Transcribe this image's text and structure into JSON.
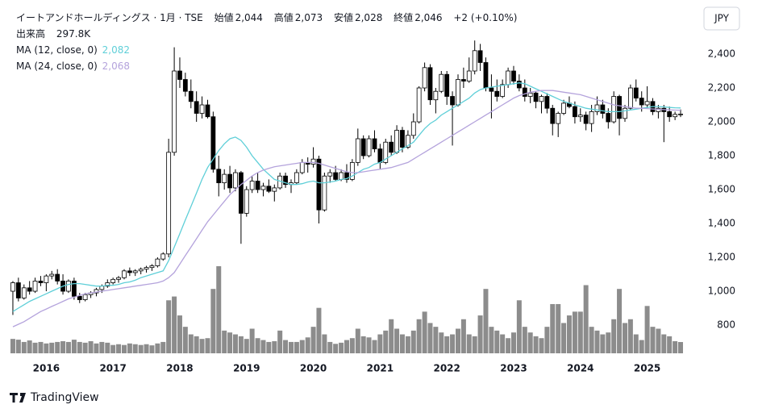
{
  "header": {
    "symbol": "イートアンドホールディングス · 1月 · TSE",
    "open_label": "始値",
    "open": "2,044",
    "high_label": "高値",
    "high": "2,073",
    "low_label": "安値",
    "low": "2,028",
    "close_label": "終値",
    "close": "2,046",
    "change": "+2 (+0.10%)",
    "volume_label": "出来高",
    "volume": "297.8K"
  },
  "chart_data": {
    "type": "candlestick",
    "currency": "JPY",
    "up_color": "#ffffff",
    "down_color": "#000000",
    "volume_color": "#8c8c8c",
    "x": [
      2015.5,
      2015.583,
      2015.667,
      2015.75,
      2015.833,
      2015.917,
      2016,
      2016.083,
      2016.167,
      2016.25,
      2016.333,
      2016.417,
      2016.5,
      2016.583,
      2016.667,
      2016.75,
      2016.833,
      2016.917,
      2017,
      2017.083,
      2017.167,
      2017.25,
      2017.333,
      2017.417,
      2017.5,
      2017.583,
      2017.667,
      2017.75,
      2017.833,
      2017.917,
      2018,
      2018.083,
      2018.167,
      2018.25,
      2018.333,
      2018.417,
      2018.5,
      2018.583,
      2018.667,
      2018.75,
      2018.833,
      2018.917,
      2019,
      2019.083,
      2019.167,
      2019.25,
      2019.333,
      2019.417,
      2019.5,
      2019.583,
      2019.667,
      2019.75,
      2019.833,
      2019.917,
      2020,
      2020.083,
      2020.167,
      2020.25,
      2020.333,
      2020.417,
      2020.5,
      2020.583,
      2020.667,
      2020.75,
      2020.833,
      2020.917,
      2021,
      2021.083,
      2021.167,
      2021.25,
      2021.333,
      2021.417,
      2021.5,
      2021.583,
      2021.667,
      2021.75,
      2021.833,
      2021.917,
      2022,
      2022.083,
      2022.167,
      2022.25,
      2022.333,
      2022.417,
      2022.5,
      2022.583,
      2022.667,
      2022.75,
      2022.833,
      2022.917,
      2023,
      2023.083,
      2023.167,
      2023.25,
      2023.333,
      2023.417,
      2023.5,
      2023.583,
      2023.667,
      2023.75,
      2023.833,
      2023.917,
      2024,
      2024.083,
      2024.167,
      2024.25,
      2024.333,
      2024.417,
      2024.5,
      2024.583,
      2024.667,
      2024.75,
      2024.833,
      2024.917,
      2025,
      2025.083,
      2025.167,
      2025.25,
      2025.333,
      2025.417,
      2025.5
    ],
    "open": [
      1000,
      1050,
      960,
      1020,
      1000,
      1060,
      1050,
      1090,
      1100,
      1060,
      1000,
      1060,
      970,
      950,
      980,
      990,
      1010,
      1030,
      1050,
      1070,
      1080,
      1120,
      1110,
      1120,
      1130,
      1140,
      1150,
      1190,
      1220,
      1820,
      2300,
      2250,
      2180,
      2120,
      2050,
      2100,
      2030,
      1720,
      1640,
      1690,
      1610,
      1700,
      1460,
      1600,
      1650,
      1600,
      1620,
      1590,
      1610,
      1680,
      1630,
      1640,
      1700,
      1760,
      1750,
      1780,
      1480,
      1680,
      1700,
      1660,
      1700,
      1660,
      1760,
      1900,
      1800,
      1900,
      1840,
      1760,
      1880,
      1820,
      1950,
      1850,
      1920,
      2000,
      2200,
      2320,
      2130,
      2180,
      2280,
      2150,
      2100,
      2250,
      2240,
      2300,
      2420,
      2350,
      2200,
      2180,
      2150,
      2220,
      2300,
      2240,
      2200,
      2150,
      2170,
      2120,
      2150,
      2080,
      1990,
      2050,
      2110,
      2090,
      2030,
      2040,
      1990,
      2060,
      2100,
      2050,
      2000,
      2150,
      2020,
      2080,
      2200,
      2140,
      2100,
      2120,
      2060,
      2080,
      2060,
      2030,
      2044
    ],
    "high": [
      1060,
      1080,
      1040,
      1060,
      1080,
      1090,
      1100,
      1120,
      1130,
      1100,
      1070,
      1080,
      990,
      990,
      1000,
      1020,
      1040,
      1070,
      1080,
      1090,
      1130,
      1140,
      1130,
      1140,
      1150,
      1160,
      1200,
      1230,
      1900,
      2440,
      2380,
      2290,
      2250,
      2180,
      2150,
      2130,
      2060,
      1800,
      1720,
      1740,
      1720,
      1710,
      1620,
      1680,
      1700,
      1640,
      1660,
      1630,
      1700,
      1700,
      1660,
      1720,
      1780,
      1790,
      1850,
      1800,
      1700,
      1720,
      1740,
      1720,
      1750,
      1780,
      1960,
      1920,
      1920,
      1950,
      1870,
      1900,
      1920,
      1980,
      1970,
      1950,
      2050,
      2210,
      2350,
      2340,
      2200,
      2300,
      2300,
      2180,
      2280,
      2320,
      2380,
      2480,
      2460,
      2380,
      2280,
      2250,
      2250,
      2320,
      2330,
      2280,
      2250,
      2200,
      2180,
      2160,
      2170,
      2100,
      2060,
      2130,
      2150,
      2120,
      2080,
      2060,
      2100,
      2150,
      2130,
      2080,
      2180,
      2160,
      2100,
      2220,
      2250,
      2180,
      2210,
      2140,
      2100,
      2100,
      2090,
      2060,
      2073
    ],
    "low": [
      860,
      940,
      950,
      980,
      990,
      1030,
      1000,
      1070,
      1040,
      980,
      990,
      950,
      930,
      940,
      960,
      970,
      990,
      1020,
      1040,
      1050,
      1070,
      1090,
      1090,
      1100,
      1110,
      1120,
      1140,
      1180,
      1200,
      1800,
      2200,
      2150,
      2080,
      2000,
      2020,
      2020,
      1700,
      1560,
      1600,
      1580,
      1590,
      1280,
      1440,
      1580,
      1580,
      1560,
      1580,
      1530,
      1600,
      1610,
      1580,
      1630,
      1690,
      1700,
      1730,
      1400,
      1470,
      1640,
      1650,
      1650,
      1640,
      1650,
      1740,
      1780,
      1790,
      1820,
      1720,
      1750,
      1800,
      1810,
      1820,
      1840,
      1900,
      1990,
      2180,
      2100,
      2050,
      2170,
      2100,
      1860,
      2090,
      2200,
      2230,
      2280,
      2300,
      2180,
      2020,
      2120,
      2140,
      2200,
      2220,
      2180,
      2120,
      2110,
      2080,
      2050,
      2050,
      1920,
      1910,
      2040,
      2080,
      1990,
      2000,
      1950,
      1940,
      2040,
      2020,
      1960,
      1990,
      1920,
      2000,
      2070,
      2120,
      2060,
      2080,
      2040,
      2020,
      1880,
      2000,
      2010,
      2028
    ],
    "close": [
      1050,
      960,
      1020,
      1000,
      1060,
      1050,
      1090,
      1100,
      1060,
      1000,
      1060,
      970,
      950,
      980,
      990,
      1010,
      1030,
      1050,
      1070,
      1080,
      1120,
      1110,
      1120,
      1130,
      1140,
      1150,
      1190,
      1220,
      1820,
      2300,
      2250,
      2180,
      2120,
      2050,
      2100,
      2030,
      1720,
      1640,
      1690,
      1610,
      1700,
      1460,
      1600,
      1650,
      1600,
      1620,
      1590,
      1610,
      1680,
      1630,
      1640,
      1700,
      1760,
      1750,
      1780,
      1480,
      1680,
      1700,
      1660,
      1700,
      1660,
      1760,
      1900,
      1800,
      1900,
      1840,
      1760,
      1880,
      1820,
      1950,
      1850,
      1920,
      2000,
      2200,
      2320,
      2130,
      2180,
      2280,
      2150,
      2100,
      2250,
      2240,
      2300,
      2420,
      2350,
      2200,
      2180,
      2150,
      2220,
      2300,
      2240,
      2200,
      2150,
      2170,
      2120,
      2150,
      2080,
      1990,
      2050,
      2110,
      2090,
      2030,
      2040,
      1990,
      2060,
      2100,
      2050,
      2000,
      2150,
      2020,
      2080,
      2200,
      2140,
      2100,
      2120,
      2060,
      2080,
      2060,
      2030,
      2044,
      2046
    ],
    "volume": [
      380000,
      360000,
      300000,
      340000,
      280000,
      300000,
      260000,
      280000,
      300000,
      320000,
      300000,
      360000,
      300000,
      280000,
      320000,
      260000,
      300000,
      280000,
      220000,
      240000,
      220000,
      260000,
      240000,
      220000,
      240000,
      210000,
      260000,
      300000,
      1400000,
      1500000,
      1000000,
      700000,
      500000,
      450000,
      380000,
      400000,
      1700000,
      2300000,
      600000,
      550000,
      500000,
      450000,
      380000,
      650000,
      400000,
      350000,
      300000,
      320000,
      600000,
      350000,
      300000,
      300000,
      350000,
      420000,
      700000,
      1200000,
      500000,
      300000,
      250000,
      280000,
      350000,
      400000,
      650000,
      450000,
      420000,
      350000,
      500000,
      600000,
      900000,
      650000,
      500000,
      450000,
      600000,
      900000,
      1100000,
      800000,
      700000,
      550000,
      450000,
      500000,
      650000,
      900000,
      500000,
      450000,
      1000000,
      1700000,
      700000,
      600000,
      500000,
      400000,
      550000,
      1400000,
      700000,
      550000,
      450000,
      400000,
      700000,
      1300000,
      1300000,
      800000,
      1000000,
      1100000,
      1100000,
      1800000,
      700000,
      600000,
      500000,
      550000,
      900000,
      1700000,
      800000,
      900000,
      500000,
      350000,
      1250000,
      700000,
      650000,
      500000,
      450000,
      320000,
      297800
    ],
    "series": [
      {
        "name": "MA (12, close, 0)",
        "color": "#5fcfd8",
        "last_label": "2,082",
        "values": [
          880,
          900,
          920,
          940,
          955,
          970,
          985,
          1000,
          1015,
          1030,
          1040,
          1045,
          1045,
          1040,
          1035,
          1030,
          1030,
          1035,
          1035,
          1040,
          1050,
          1055,
          1065,
          1080,
          1090,
          1100,
          1110,
          1120,
          1180,
          1260,
          1340,
          1420,
          1500,
          1580,
          1660,
          1730,
          1780,
          1830,
          1870,
          1900,
          1910,
          1890,
          1850,
          1800,
          1760,
          1720,
          1690,
          1660,
          1650,
          1640,
          1630,
          1630,
          1635,
          1645,
          1650,
          1640,
          1640,
          1645,
          1650,
          1660,
          1665,
          1680,
          1700,
          1720,
          1730,
          1750,
          1760,
          1780,
          1800,
          1820,
          1840,
          1860,
          1880,
          1920,
          1960,
          1990,
          2010,
          2040,
          2060,
          2080,
          2100,
          2120,
          2140,
          2170,
          2190,
          2200,
          2205,
          2210,
          2215,
          2220,
          2225,
          2230,
          2225,
          2210,
          2195,
          2180,
          2165,
          2150,
          2135,
          2120,
          2110,
          2100,
          2090,
          2080,
          2075,
          2070,
          2065,
          2060,
          2060,
          2060,
          2065,
          2070,
          2075,
          2080,
          2085,
          2090,
          2090,
          2088,
          2085,
          2083,
          2082
        ]
      },
      {
        "name": "MA (24, close, 0)",
        "color": "#b4a3dc",
        "last_label": "2,068",
        "values": [
          790,
          805,
          820,
          840,
          860,
          880,
          895,
          910,
          925,
          940,
          955,
          965,
          975,
          985,
          990,
          995,
          1000,
          1005,
          1010,
          1015,
          1020,
          1025,
          1030,
          1035,
          1040,
          1045,
          1050,
          1060,
          1080,
          1110,
          1160,
          1210,
          1260,
          1310,
          1360,
          1410,
          1450,
          1490,
          1530,
          1570,
          1600,
          1630,
          1655,
          1680,
          1700,
          1715,
          1725,
          1735,
          1740,
          1745,
          1750,
          1755,
          1760,
          1760,
          1760,
          1755,
          1745,
          1735,
          1725,
          1715,
          1705,
          1700,
          1700,
          1705,
          1710,
          1715,
          1720,
          1725,
          1730,
          1740,
          1750,
          1760,
          1780,
          1800,
          1820,
          1840,
          1860,
          1880,
          1900,
          1920,
          1940,
          1960,
          1980,
          2000,
          2020,
          2040,
          2060,
          2080,
          2100,
          2120,
          2140,
          2155,
          2165,
          2175,
          2180,
          2185,
          2185,
          2185,
          2180,
          2175,
          2170,
          2165,
          2160,
          2150,
          2140,
          2130,
          2120,
          2110,
          2100,
          2095,
          2090,
          2085,
          2080,
          2080,
          2078,
          2076,
          2074,
          2072,
          2070,
          2069,
          2068
        ]
      }
    ],
    "xlim": [
      2015.428,
      2025.633
    ],
    "xticks": [
      2016,
      2017,
      2018,
      2019,
      2020,
      2021,
      2022,
      2023,
      2024,
      2025
    ],
    "ylim": [
      624,
      2681
    ],
    "yticks": [
      {
        "value": 2400,
        "label": "2,400"
      },
      {
        "value": 2200,
        "label": "2,200"
      },
      {
        "value": 2000,
        "label": "2,000"
      },
      {
        "value": 1800,
        "label": "1,800"
      },
      {
        "value": 1600,
        "label": "1,600"
      },
      {
        "value": 1400,
        "label": "1,400"
      },
      {
        "value": 1200,
        "label": "1,200"
      },
      {
        "value": 1000,
        "label": "1,000"
      },
      800
    ]
  },
  "footer": {
    "brand": "TradingView"
  }
}
